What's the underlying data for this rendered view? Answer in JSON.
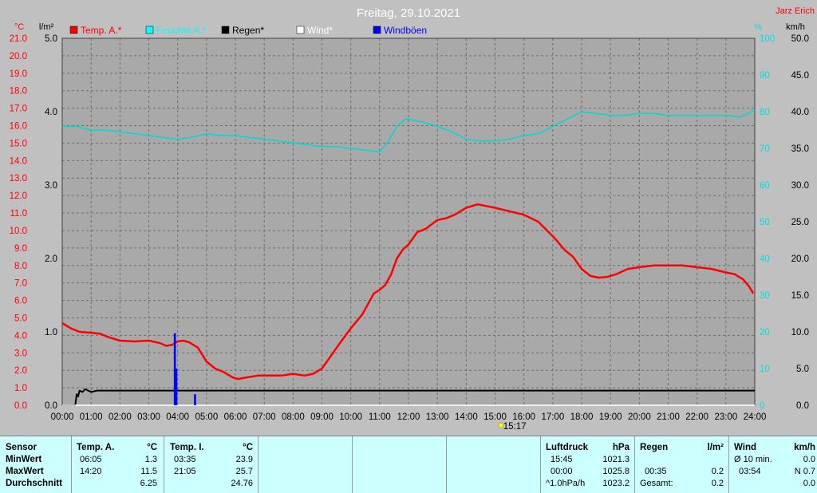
{
  "chart_data": {
    "type": "line",
    "title": "Freitag, 29.10.2021",
    "author": "Jarz Erich",
    "unit_labels": {
      "temp": "°C",
      "rain": "l/m²",
      "humidity": "%",
      "wind": "km/h"
    },
    "legend": [
      {
        "name": "Temp. A.*",
        "color": "#ff0000"
      },
      {
        "name": "Feuchte A.*",
        "color": "#00ffff"
      },
      {
        "name": "Regen*",
        "color": "#000000"
      },
      {
        "name": "Wind*",
        "color": "#ffffff"
      },
      {
        "name": "Windböen",
        "color": "#0000ff"
      }
    ],
    "axes": {
      "temp": {
        "min": 0,
        "max": 21,
        "ticks": [
          "0.0",
          "1.0",
          "2.0",
          "3.0",
          "4.0",
          "5.0",
          "6.0",
          "7.0",
          "8.0",
          "9.0",
          "10.0",
          "11.0",
          "12.0",
          "13.0",
          "14.0",
          "15.0",
          "16.0",
          "17.0",
          "18.0",
          "19.0",
          "20.0",
          "21.0"
        ]
      },
      "rain": {
        "min": 0,
        "max": 5,
        "ticks": [
          "0.0",
          "1.0",
          "2.0",
          "3.0",
          "4.0",
          "5.0"
        ]
      },
      "humidity": {
        "min": 0,
        "max": 100,
        "ticks": [
          "0",
          "10",
          "20",
          "30",
          "40",
          "50",
          "60",
          "70",
          "80",
          "90",
          "100"
        ]
      },
      "wind": {
        "min": 0,
        "max": 50,
        "ticks": [
          "0.0",
          "5.0",
          "10.0",
          "15.0",
          "20.0",
          "25.0",
          "30.0",
          "35.0",
          "40.0",
          "45.0",
          "50.0"
        ]
      },
      "x": {
        "min": 0,
        "max": 24,
        "ticks": [
          "00:00",
          "01:00",
          "02:00",
          "03:00",
          "04:00",
          "05:00",
          "06:00",
          "07:00",
          "08:00",
          "09:00",
          "10:00",
          "11:00",
          "12:00",
          "13:00",
          "14:00",
          "15:00",
          "16:00",
          "17:00",
          "18:00",
          "19:00",
          "20:00",
          "21:00",
          "22:00",
          "23:00",
          "24:00"
        ]
      }
    },
    "grid": true,
    "sun_marker": "15:17",
    "series": [
      {
        "name": "Temp. A.*",
        "axis": "temp",
        "color": "#ff0000",
        "x": [
          0,
          0.3,
          0.6,
          1.0,
          1.3,
          1.6,
          2.0,
          2.5,
          3.0,
          3.4,
          3.6,
          3.8,
          4.0,
          4.2,
          4.4,
          4.7,
          5.0,
          5.3,
          5.6,
          5.9,
          6.1,
          6.4,
          6.8,
          7.2,
          7.6,
          8.0,
          8.4,
          8.7,
          9.0,
          9.3,
          9.6,
          10.0,
          10.4,
          10.8,
          11.0,
          11.2,
          11.4,
          11.6,
          11.8,
          12.0,
          12.3,
          12.6,
          13.0,
          13.3,
          13.6,
          14.0,
          14.4,
          14.7,
          15.0,
          15.5,
          16.0,
          16.5,
          16.8,
          17.1,
          17.4,
          17.7,
          18.0,
          18.3,
          18.6,
          18.9,
          19.2,
          19.6,
          20.0,
          20.5,
          21.0,
          21.5,
          22.0,
          22.5,
          23.0,
          23.3,
          23.6,
          23.8,
          23.95
        ],
        "values": [
          4.7,
          4.4,
          4.2,
          4.15,
          4.1,
          3.9,
          3.7,
          3.65,
          3.7,
          3.55,
          3.4,
          3.45,
          3.65,
          3.7,
          3.6,
          3.3,
          2.5,
          2.1,
          1.9,
          1.6,
          1.5,
          1.6,
          1.7,
          1.7,
          1.7,
          1.8,
          1.7,
          1.8,
          2.1,
          2.8,
          3.5,
          4.4,
          5.2,
          6.4,
          6.6,
          6.9,
          7.5,
          8.4,
          8.9,
          9.2,
          9.9,
          10.1,
          10.6,
          10.7,
          10.9,
          11.3,
          11.5,
          11.4,
          11.3,
          11.1,
          10.9,
          10.5,
          10.0,
          9.5,
          8.9,
          8.5,
          7.8,
          7.4,
          7.3,
          7.35,
          7.5,
          7.8,
          7.9,
          8.0,
          8.0,
          8.0,
          7.9,
          7.8,
          7.6,
          7.5,
          7.2,
          6.8,
          6.4
        ]
      },
      {
        "name": "Feuchte A.*",
        "axis": "humidity",
        "color": "#00d8d8",
        "x": [
          0,
          0.5,
          1.0,
          1.5,
          2.0,
          2.5,
          3.0,
          3.5,
          4.0,
          4.5,
          5.0,
          5.5,
          6.0,
          6.5,
          7.0,
          7.5,
          8.0,
          8.5,
          9.0,
          9.5,
          10.0,
          10.5,
          11.0,
          11.3,
          11.6,
          11.9,
          12.0,
          12.3,
          12.6,
          13.0,
          13.5,
          14.0,
          14.5,
          15.0,
          15.5,
          16.0,
          16.5,
          17.0,
          17.5,
          18.0,
          18.5,
          19.0,
          19.5,
          20.0,
          20.5,
          21.0,
          21.5,
          22.0,
          22.5,
          23.0,
          23.5,
          24.0
        ],
        "values": [
          76,
          76,
          75,
          75,
          74.5,
          74,
          73.5,
          73,
          72.5,
          73,
          74,
          73.5,
          73.5,
          73,
          72.5,
          72,
          71.5,
          71,
          70.5,
          70.5,
          70,
          69.5,
          69,
          72,
          76,
          78,
          78,
          77.5,
          77,
          76,
          74.5,
          72.5,
          72,
          72,
          72.5,
          73.5,
          74,
          76,
          78,
          80,
          79.5,
          79,
          79,
          79.5,
          79.5,
          79,
          79,
          79,
          79,
          79,
          78.5,
          80.5
        ]
      },
      {
        "name": "Regen*",
        "axis": "rain",
        "color": "#000000",
        "x": [
          0,
          0.45,
          0.5,
          0.55,
          0.6,
          0.7,
          0.8,
          0.9,
          1.0,
          1.2,
          1.5,
          2.0,
          24.0
        ],
        "values": [
          0,
          0,
          0.15,
          0.12,
          0.2,
          0.18,
          0.22,
          0.2,
          0.18,
          0.2,
          0.2,
          0.2,
          0.2
        ]
      },
      {
        "name": "Wind*",
        "axis": "wind",
        "color": "#ffffff",
        "x": [
          0,
          24
        ],
        "values": [
          0,
          0
        ]
      },
      {
        "name": "Windböen",
        "axis": "wind",
        "color": "#0000ff",
        "bars": [
          {
            "x": 3.9,
            "value": 9.8
          },
          {
            "x": 3.95,
            "value": 5.0
          },
          {
            "x": 4.6,
            "value": 1.5
          }
        ]
      }
    ]
  },
  "table": {
    "sensor": {
      "header": "Sensor",
      "rows": [
        "MinWert",
        "MaxWert",
        "Durchschnitt"
      ]
    },
    "temp_a": {
      "header": "Temp. A.",
      "unit": "°C",
      "times": [
        "06:05",
        "14:20",
        ""
      ],
      "values": [
        "1.3",
        "11.5",
        "6.25"
      ]
    },
    "temp_i": {
      "header": "Temp. I.",
      "unit": "°C",
      "times": [
        "03:35",
        "21:05",
        ""
      ],
      "values": [
        "23.9",
        "25.7",
        "24.76"
      ]
    },
    "pressure": {
      "header": "Luftdruck",
      "unit": "hPa",
      "times": [
        "15:45",
        "00:00",
        "^1.0hPa/h"
      ],
      "values": [
        "1021.3",
        "1025.8",
        "1023.2"
      ]
    },
    "rain": {
      "header": "Regen",
      "unit": "l/m²",
      "times": [
        "",
        "00:35",
        "Gesamt:"
      ],
      "values": [
        "",
        "0.2",
        "0.2"
      ]
    },
    "wind": {
      "header": "Wind",
      "unit": "km/h",
      "times": [
        "Ø 10 min.",
        "03:54",
        ""
      ],
      "values": [
        "0.0",
        "N 0.7",
        "0.0"
      ]
    }
  }
}
